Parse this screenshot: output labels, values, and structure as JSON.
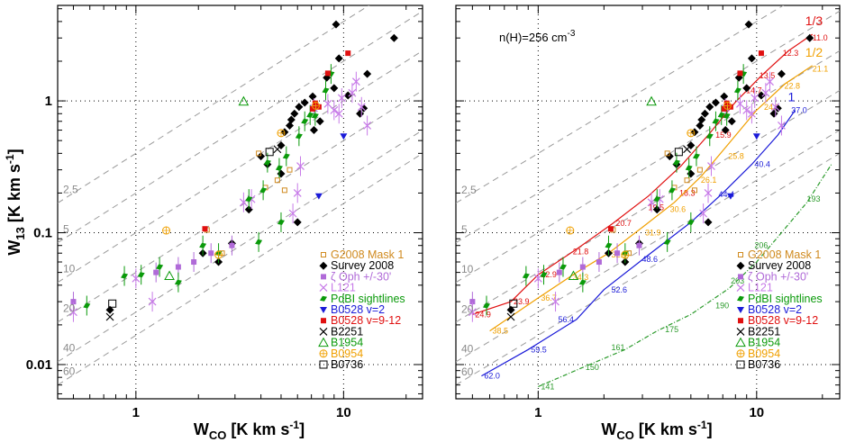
{
  "chart_data": [
    {
      "type": "scatter",
      "xscale": "log",
      "yscale": "log",
      "xlim": [
        0.42,
        24
      ],
      "ylim": [
        0.0055,
        5.3
      ],
      "xlabel": "W",
      "xlabel_sub": "CO",
      "xlabel_unit": " [K km s",
      "xlabel_sup": "-1",
      "xlabel_close": "]",
      "ylabel": "W",
      "ylabel_sub": "13",
      "ylabel_unit": " [K km s",
      "ylabel_sup": "-1",
      "ylabel_close": "]",
      "xticks": [
        "1",
        "10"
      ],
      "yticks": [
        "0.01",
        "0.1",
        "1"
      ],
      "grid": "dotted at 1 and 10 in x, 0.01 0.1 1 in y",
      "ratio_lines": [
        {
          "label": "2.5",
          "ratio": 2.5
        },
        {
          "label": "5",
          "ratio": 5
        },
        {
          "label": "10",
          "ratio": 10
        },
        {
          "label": "20",
          "ratio": 20
        },
        {
          "label": "40",
          "ratio": 40
        },
        {
          "label": "60",
          "ratio": 60
        }
      ],
      "legend_position": "bottom-right",
      "legend": [
        {
          "label": "G2008 Mask 1",
          "color": "#d08a1e",
          "marker": "open-square-small"
        },
        {
          "label": "Survey 2008",
          "color": "#000000",
          "marker": "diamond-filled"
        },
        {
          "label": "ζ Oph +/-30'",
          "color": "#b06ad8",
          "marker": "square-filled"
        },
        {
          "label": "L121",
          "color": "#c77ae8",
          "marker": "cross"
        },
        {
          "label": "PdBI sightlines",
          "color": "#0a9a0a",
          "marker": "slanted-bar"
        },
        {
          "label": "B0528 v=2",
          "color": "#1a1ad8",
          "marker": "triangle-down"
        },
        {
          "label": "B0528 v=9-12",
          "color": "#e01010",
          "marker": "square-filled"
        },
        {
          "label": "B2251",
          "color": "#000000",
          "marker": "x"
        },
        {
          "label": "B1954",
          "color": "#0a9a0a",
          "marker": "open-triangle"
        },
        {
          "label": "B0954",
          "color": "#f0a000",
          "marker": "open-circle-plus"
        },
        {
          "label": "B0736",
          "color": "#000000",
          "marker": "open-square"
        }
      ],
      "series": [
        {
          "name": "Survey 2008",
          "points": [
            [
              0.75,
              0.026
            ],
            [
              2.1,
              0.07
            ],
            [
              2.5,
              0.06
            ],
            [
              2.9,
              0.083
            ],
            [
              3.5,
              0.15
            ],
            [
              4.0,
              0.38
            ],
            [
              4.3,
              0.33
            ],
            [
              5.0,
              0.46
            ],
            [
              5.2,
              0.58
            ],
            [
              5.5,
              0.65
            ],
            [
              5.6,
              0.72
            ],
            [
              5.8,
              0.8
            ],
            [
              6.1,
              0.9
            ],
            [
              6.5,
              0.97
            ],
            [
              7.1,
              1.08
            ],
            [
              7.2,
              0.6
            ],
            [
              7.7,
              0.7
            ],
            [
              8.3,
              1.5
            ],
            [
              9.2,
              3.8
            ],
            [
              9.5,
              2.1
            ],
            [
              9.0,
              1.25
            ],
            [
              10.5,
              1.1
            ],
            [
              12.0,
              0.8
            ],
            [
              12.5,
              0.88
            ],
            [
              13.0,
              1.6
            ],
            [
              17.5,
              3.0
            ],
            [
              6.0,
              0.12
            ],
            [
              5.0,
              0.28
            ]
          ]
        },
        {
          "name": "G2008 Mask 1",
          "points": [
            [
              2.2,
              0.105
            ],
            [
              2.6,
              0.07
            ],
            [
              4.2,
              0.22
            ],
            [
              4.8,
              0.25
            ],
            [
              5.2,
              0.21
            ],
            [
              5.5,
              0.3
            ],
            [
              3.9,
              0.4
            ]
          ]
        },
        {
          "name": "ζ Oph +/-30'",
          "points": [
            [
              0.5,
              0.03
            ],
            [
              1.25,
              0.05
            ],
            [
              1.6,
              0.055
            ],
            [
              1.9,
              0.06
            ],
            [
              2.3,
              0.07
            ],
            [
              2.9,
              0.08
            ]
          ]
        },
        {
          "name": "L121",
          "points": [
            [
              0.5,
              0.025
            ],
            [
              1.0,
              0.045
            ],
            [
              1.2,
              0.03
            ],
            [
              3.3,
              0.17
            ],
            [
              3.6,
              0.18
            ],
            [
              5.7,
              0.14
            ],
            [
              6.0,
              0.2
            ],
            [
              6.2,
              0.32
            ],
            [
              7.2,
              0.88
            ],
            [
              8.4,
              0.95
            ],
            [
              9.0,
              0.85
            ],
            [
              9.5,
              0.8
            ],
            [
              9.8,
              1.05
            ],
            [
              11.0,
              1.15
            ],
            [
              11.5,
              1.4
            ],
            [
              12.2,
              0.9
            ],
            [
              13.0,
              0.65
            ]
          ]
        },
        {
          "name": "PdBI sightlines",
          "points": [
            [
              0.58,
              0.028
            ],
            [
              0.88,
              0.047
            ],
            [
              1.06,
              0.048
            ],
            [
              1.3,
              0.055
            ],
            [
              1.6,
              0.042
            ],
            [
              2.1,
              0.08
            ],
            [
              2.5,
              0.07
            ],
            [
              3.5,
              0.18
            ],
            [
              3.9,
              0.085
            ],
            [
              4.1,
              0.21
            ],
            [
              4.3,
              0.34
            ],
            [
              5.0,
              0.12
            ],
            [
              5.3,
              0.38
            ],
            [
              6.1,
              0.54
            ],
            [
              6.5,
              0.7
            ],
            [
              6.9,
              0.78
            ],
            [
              7.3,
              0.77
            ],
            [
              8.2,
              1.2
            ],
            [
              8.7,
              1.6
            ],
            [
              4.9,
              0.31
            ]
          ]
        },
        {
          "name": "B0528 v=2",
          "points": [
            [
              7.6,
              0.19
            ],
            [
              10.0,
              0.54
            ]
          ]
        },
        {
          "name": "B0528 v=9-12",
          "points": [
            [
              2.15,
              0.107
            ],
            [
              7.1,
              0.87
            ],
            [
              7.3,
              0.96
            ],
            [
              7.6,
              0.9
            ],
            [
              8.4,
              1.62
            ],
            [
              10.5,
              2.3
            ]
          ]
        },
        {
          "name": "B2251",
          "points": [
            [
              0.75,
              0.023
            ],
            [
              4.8,
              0.43
            ]
          ]
        },
        {
          "name": "B1954",
          "points": [
            [
              1.45,
              0.047
            ],
            [
              3.3,
              0.99
            ]
          ]
        },
        {
          "name": "B0954",
          "points": [
            [
              1.4,
              0.104
            ],
            [
              2.5,
              0.068
            ],
            [
              5.0,
              0.57
            ],
            [
              7.35,
              0.92
            ]
          ]
        },
        {
          "name": "B0736",
          "points": [
            [
              0.77,
              0.029
            ],
            [
              4.4,
              0.41
            ]
          ]
        }
      ]
    },
    {
      "type": "scatter",
      "xscale": "log",
      "yscale": "log",
      "xlim": [
        0.42,
        24
      ],
      "ylim": [
        0.0055,
        5.3
      ],
      "annotation": "n(H)=256 cm",
      "annotation_sup": "-3",
      "xlabel": "W",
      "xlabel_sub": "CO",
      "xlabel_unit": " [K km s",
      "xlabel_sup": "-1",
      "xlabel_close": "]",
      "xticks": [
        "1",
        "10"
      ],
      "yticks": [
        "0.01",
        "0.1",
        "1"
      ],
      "ratio_lines": [
        {
          "label": "2.5",
          "ratio": 2.5
        },
        {
          "label": "5",
          "ratio": 5
        },
        {
          "label": "10",
          "ratio": 10
        },
        {
          "label": "20",
          "ratio": 20
        },
        {
          "label": "40",
          "ratio": 40
        },
        {
          "label": "60",
          "ratio": 60
        }
      ],
      "model_curves": [
        {
          "name": "1/3",
          "color": "#e01010",
          "points": [
            [
              0.5,
              0.024
            ],
            [
              0.75,
              0.03
            ],
            [
              1.0,
              0.048
            ],
            [
              1.5,
              0.075
            ],
            [
              2.2,
              0.118
            ],
            [
              3.2,
              0.19
            ],
            [
              4.5,
              0.32
            ],
            [
              6.0,
              0.55
            ],
            [
              8.0,
              0.98
            ],
            [
              10.5,
              1.55
            ],
            [
              14.0,
              2.4
            ],
            [
              18.0,
              3.2
            ]
          ],
          "labels": [
            [
              0.5,
              0.024,
              "24.9"
            ],
            [
              0.75,
              0.03,
              "23.9"
            ],
            [
              1.0,
              0.048,
              "22.9"
            ],
            [
              1.4,
              0.072,
              "21.8"
            ],
            [
              2.2,
              0.118,
              "20.7"
            ],
            [
              3.1,
              0.155,
              "19.5"
            ],
            [
              4.3,
              0.2,
              "18.3"
            ],
            [
              6.3,
              0.55,
              "15.9"
            ],
            [
              8.7,
              1.2,
              "14.7"
            ],
            [
              10.0,
              1.55,
              "13.5"
            ],
            [
              12.8,
              2.3,
              "12.3"
            ],
            [
              17.5,
              3.0,
              "11.0"
            ]
          ]
        },
        {
          "name": "1/2",
          "color": "#f0a000",
          "points": [
            [
              0.6,
              0.018
            ],
            [
              1.0,
              0.032
            ],
            [
              1.5,
              0.05
            ],
            [
              2.1,
              0.07
            ],
            [
              3.0,
              0.11
            ],
            [
              4.2,
              0.17
            ],
            [
              5.6,
              0.27
            ],
            [
              7.5,
              0.48
            ],
            [
              10.0,
              0.85
            ],
            [
              13.5,
              1.35
            ],
            [
              18.0,
              1.85
            ]
          ],
          "labels": [
            [
              0.6,
              0.018,
              "38.5"
            ],
            [
              1.0,
              0.032,
              "36.7"
            ],
            [
              1.4,
              0.046,
              "34.3"
            ],
            [
              2.1,
              0.068,
              "32.9"
            ],
            [
              3.0,
              0.1,
              "31.9"
            ],
            [
              3.9,
              0.15,
              "30.6"
            ],
            [
              5.4,
              0.25,
              "26.1"
            ],
            [
              7.2,
              0.38,
              "25.8"
            ],
            [
              10.5,
              0.9,
              "24.1"
            ],
            [
              13.0,
              1.3,
              "22.8"
            ],
            [
              17.5,
              1.75,
              "21.1"
            ]
          ]
        },
        {
          "name": "1",
          "color": "#1a1ad8",
          "points": [
            [
              0.55,
              0.0082
            ],
            [
              0.9,
              0.013
            ],
            [
              1.5,
              0.022
            ],
            [
              2.0,
              0.037
            ],
            [
              3.2,
              0.068
            ],
            [
              5.0,
              0.12
            ],
            [
              7.0,
              0.2
            ],
            [
              9.5,
              0.33
            ],
            [
              12.5,
              0.55
            ],
            [
              15.0,
              0.85
            ]
          ],
          "labels": [
            [
              0.55,
              0.0082,
              "62.0"
            ],
            [
              0.9,
              0.013,
              "59.5"
            ],
            [
              1.2,
              0.022,
              "56.4"
            ],
            [
              2.1,
              0.037,
              "52.6"
            ],
            [
              2.9,
              0.063,
              "48.6"
            ],
            [
              6.5,
              0.195,
              "44.4"
            ],
            [
              9.5,
              0.33,
              "40.4"
            ],
            [
              14.0,
              0.85,
              "37.0"
            ]
          ]
        },
        {
          "name": "",
          "color": "#2a9a2a",
          "dashed": true,
          "points": [
            [
              1.0,
              0.0068
            ],
            [
              1.6,
              0.0095
            ],
            [
              2.5,
              0.013
            ],
            [
              3.5,
              0.018
            ],
            [
              5.0,
              0.024
            ],
            [
              7.5,
              0.038
            ],
            [
              10.0,
              0.06
            ],
            [
              13.0,
              0.1
            ],
            [
              17.0,
              0.17
            ],
            [
              22.0,
              0.33
            ]
          ],
          "labels": [
            [
              1.0,
              0.0068,
              "141"
            ],
            [
              1.6,
              0.0095,
              "150"
            ],
            [
              2.1,
              0.0135,
              "161"
            ],
            [
              3.7,
              0.0185,
              "175"
            ],
            [
              6.3,
              0.028,
              "190"
            ],
            [
              7.4,
              0.043,
              "203"
            ],
            [
              9.5,
              0.08,
              "206"
            ],
            [
              16.5,
              0.18,
              "193"
            ]
          ]
        }
      ],
      "legend_position": "bottom-right",
      "legend": [
        {
          "label": "G2008 Mask 1",
          "color": "#d08a1e",
          "marker": "open-square-small"
        },
        {
          "label": "Survey 2008",
          "color": "#000000",
          "marker": "diamond-filled"
        },
        {
          "label": "ζ Oph +/-30'",
          "color": "#b06ad8",
          "marker": "square-filled"
        },
        {
          "label": "L121",
          "color": "#c77ae8",
          "marker": "cross"
        },
        {
          "label": "PdBI sightlines",
          "color": "#0a9a0a",
          "marker": "slanted-bar"
        },
        {
          "label": "B0528 v=2",
          "color": "#1a1ad8",
          "marker": "triangle-down"
        },
        {
          "label": "B0528 v=9-12",
          "color": "#e01010",
          "marker": "square-filled"
        },
        {
          "label": "B2251",
          "color": "#000000",
          "marker": "x"
        },
        {
          "label": "B1954",
          "color": "#0a9a0a",
          "marker": "open-triangle"
        },
        {
          "label": "B0954",
          "color": "#f0a000",
          "marker": "open-circle-plus"
        },
        {
          "label": "B0736",
          "color": "#000000",
          "marker": "open-square"
        }
      ],
      "series": "same as left panel"
    }
  ]
}
